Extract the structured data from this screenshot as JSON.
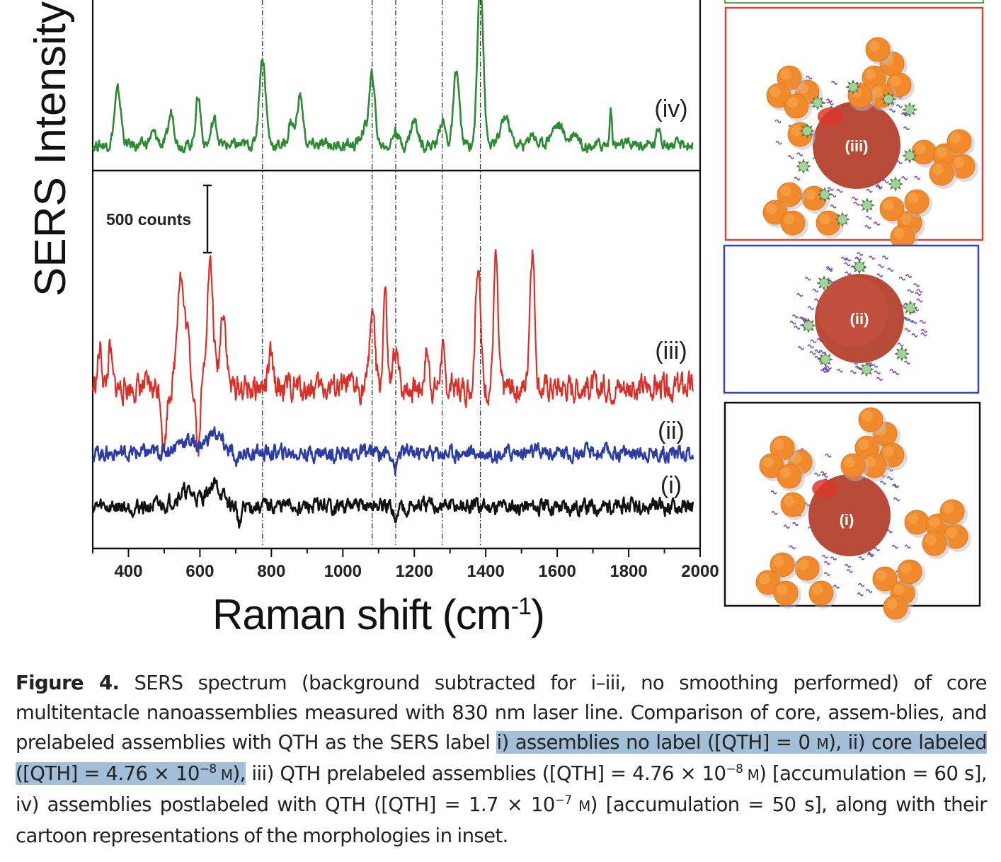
{
  "figure": {
    "number_label": "Figure 4.",
    "caption_parts": {
      "p1": " SERS spectrum (background subtracted for i–iii, no smoothing performed) of core multitentacle nanoassemblies measured with 830 nm laser line. Comparison of core, assem-blies, and prelabeled assemblies with QTH as the SERS label ",
      "hl1": "i) assemblies no label ([QTH] = 0 ",
      "hl1_unit": "M",
      "hl2": "), ii) core labeled ([QTH] = 4.76 × 10",
      "hl2_exp": "−8",
      "hl3_unit": " M",
      "hl3": "),",
      "p2": " iii) QTH prelabeled assemblies ([QTH] = 4.76 × 10",
      "p2_exp": "−8",
      "p2_unit": " M",
      "p3": ") [accumulation = 60 s], iv) assemblies postlabeled with QTH ([QTH] = 1.7 × 10",
      "p3_exp": "−7",
      "p3_unit": " M",
      "p4": ") [accumulation = 50 s], along with their cartoon representations of the morphologies in inset."
    }
  },
  "chart_data": {
    "type": "line",
    "title": "",
    "xlabel": "Raman shift (cm",
    "xlabel_sup": "-1",
    "xlabel_close": ")",
    "ylabel": "SERS Intensity",
    "xlim": [
      300,
      2000
    ],
    "x_ticks": [
      400,
      600,
      800,
      1000,
      1200,
      1400,
      1600,
      1800,
      2000
    ],
    "x_tick_labels": [
      "400",
      "600",
      "800",
      "1000",
      "1200",
      "1400",
      "1600",
      "1800",
      "2000"
    ],
    "grid": false,
    "scale_bar": {
      "label": "500 counts",
      "value": 500
    },
    "reference_lines_cm-1": [
      775,
      1082,
      1148,
      1278,
      1385
    ],
    "panels": [
      {
        "name": "top",
        "series": [
          {
            "name": "(iv)",
            "description": "assemblies postlabeled with QTH",
            "color": "#2e8b35",
            "baseline": 0,
            "noise": 40,
            "peaks": [
              [
                370,
                380,
                9
              ],
              [
                470,
                80,
                10
              ],
              [
                520,
                230,
                8
              ],
              [
                595,
                350,
                7
              ],
              [
                640,
                180,
                8
              ],
              [
                775,
                620,
                9
              ],
              [
                855,
                170,
                7
              ],
              [
                880,
                350,
                8
              ],
              [
                1060,
                110,
                10
              ],
              [
                1082,
                480,
                8
              ],
              [
                1148,
                110,
                7
              ],
              [
                1200,
                170,
                10
              ],
              [
                1278,
                180,
                8
              ],
              [
                1318,
                520,
                8
              ],
              [
                1385,
                1200,
                8
              ],
              [
                1455,
                200,
                12
              ],
              [
                1530,
                90,
                8
              ],
              [
                1600,
                140,
                18
              ],
              [
                1650,
                90,
                10
              ],
              [
                1750,
                260,
                3
              ],
              [
                1885,
                130,
                6
              ]
            ],
            "label": "(iv)"
          }
        ]
      },
      {
        "name": "bottom",
        "series": [
          {
            "name": "(iii)",
            "description": "QTH prelabeled assemblies",
            "color": "#d9302a",
            "baseline": 0,
            "noise": 90,
            "peaks": [
              [
                545,
                780,
                9
              ],
              [
                565,
                320,
                7
              ],
              [
                628,
                820,
                9
              ],
              [
                665,
                550,
                8
              ],
              [
                500,
                -400,
                6
              ],
              [
                595,
                -420,
                5
              ],
              [
                320,
                250,
                6
              ],
              [
                348,
                250,
                5
              ],
              [
                798,
                200,
                6
              ],
              [
                1082,
                540,
                7
              ],
              [
                1118,
                650,
                5
              ],
              [
                1148,
                260,
                6
              ],
              [
                1235,
                250,
                6
              ],
              [
                1278,
                270,
                5
              ],
              [
                1378,
                840,
                7
              ],
              [
                1428,
                870,
                6
              ],
              [
                1530,
                960,
                7
              ]
            ],
            "label": "(iii)"
          },
          {
            "name": "(ii)",
            "description": "core labeled",
            "color": "#2c3ea6",
            "baseline": 0,
            "noise": 55,
            "peaks": [
              [
                560,
                90,
                30
              ],
              [
                640,
                140,
                20
              ],
              [
                700,
                -120,
                4
              ],
              [
                1148,
                -140,
                4
              ]
            ],
            "label": "(ii)"
          },
          {
            "name": "(i)",
            "description": "assemblies no label",
            "color": "#111111",
            "baseline": 0,
            "noise": 55,
            "peaks": [
              [
                560,
                100,
                30
              ],
              [
                640,
                150,
                20
              ],
              [
                710,
                -140,
                4
              ],
              [
                1148,
                -140,
                4
              ]
            ],
            "label": "(i)"
          }
        ]
      }
    ]
  },
  "insets": [
    {
      "label": "(iii)",
      "description": "QTH prelabeled assemblies",
      "border_color": "#d9432f"
    },
    {
      "label": "(ii)",
      "description": "core labeled",
      "border_color": "#3845b0"
    },
    {
      "label": "(i)",
      "description": "assemblies no label",
      "border_color": "#111111"
    }
  ],
  "colors": {
    "top_inset_border": "#4caf50"
  }
}
